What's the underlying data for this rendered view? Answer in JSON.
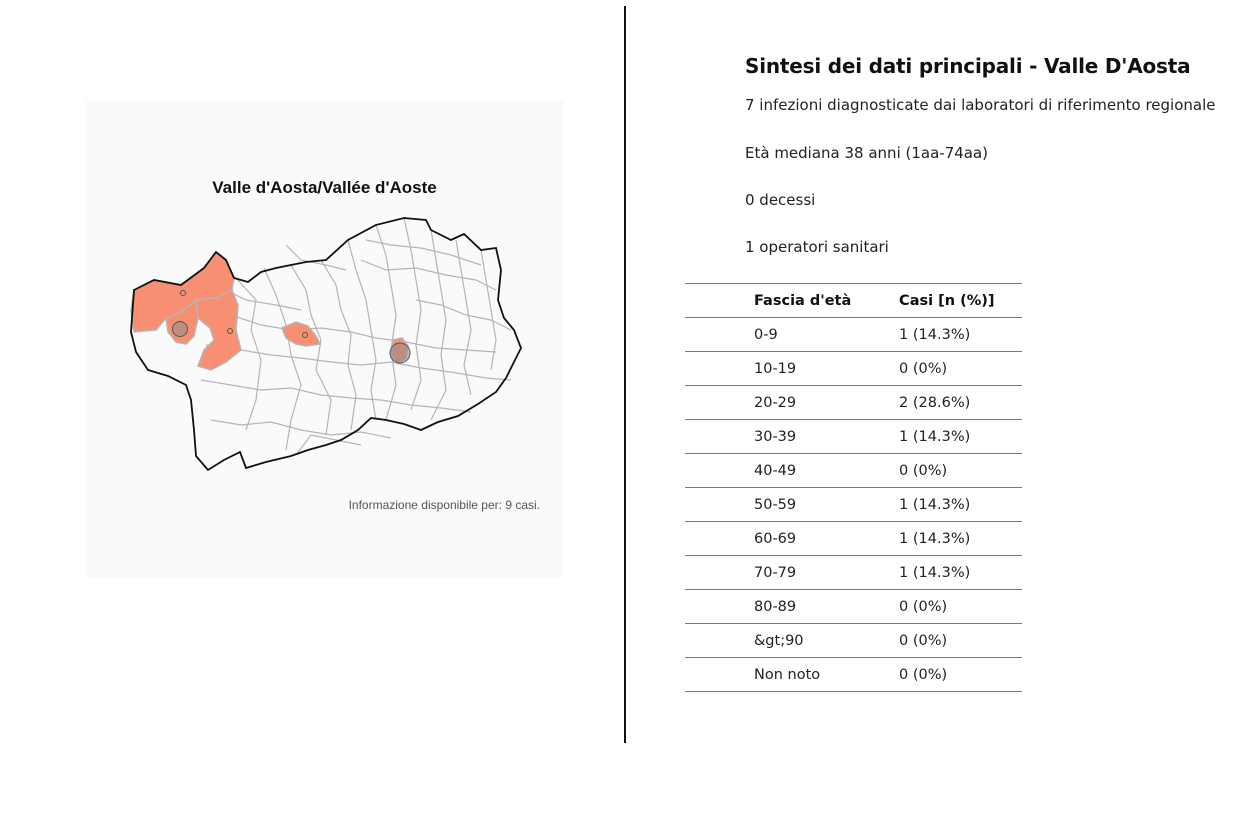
{
  "map": {
    "title": "Valle d'Aosta/Vallée d'Aoste",
    "note": "Informazione disponibile per: 9 casi.",
    "colors": {
      "affected_fill": "#f88f72",
      "municipality_border": "#b5b5b5",
      "region_border": "#111111",
      "marker": "#8c8c8c"
    }
  },
  "summary": {
    "title": "Sintesi dei dati principali - Valle D'Aosta",
    "infections": "7 infezioni diagnosticate dai laboratori di riferimento regionale",
    "median_age": "Età mediana 38 anni (1aa-74aa)",
    "deaths": "0 decessi",
    "health_workers": "1 operatori sanitari"
  },
  "age_table": {
    "headers": [
      "Fascia d'età",
      "Casi [n (%)]"
    ],
    "rows": [
      [
        "0-9",
        "1 (14.3%)"
      ],
      [
        "10-19",
        "0 (0%)"
      ],
      [
        "20-29",
        "2 (28.6%)"
      ],
      [
        "30-39",
        "1 (14.3%)"
      ],
      [
        "40-49",
        "0 (0%)"
      ],
      [
        "50-59",
        "1 (14.3%)"
      ],
      [
        "60-69",
        "1 (14.3%)"
      ],
      [
        "70-79",
        "1 (14.3%)"
      ],
      [
        "80-89",
        "0 (0%)"
      ],
      [
        "&gt;90",
        "0 (0%)"
      ],
      [
        "Non noto",
        "0 (0%)"
      ]
    ]
  }
}
